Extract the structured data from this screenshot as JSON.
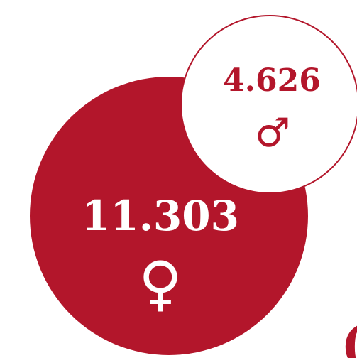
{
  "circles": [
    {
      "value": "11.303",
      "symbol": "♀"
    },
    {
      "value": "4.626",
      "symbol": "♂"
    }
  ],
  "fragment": "("
}
